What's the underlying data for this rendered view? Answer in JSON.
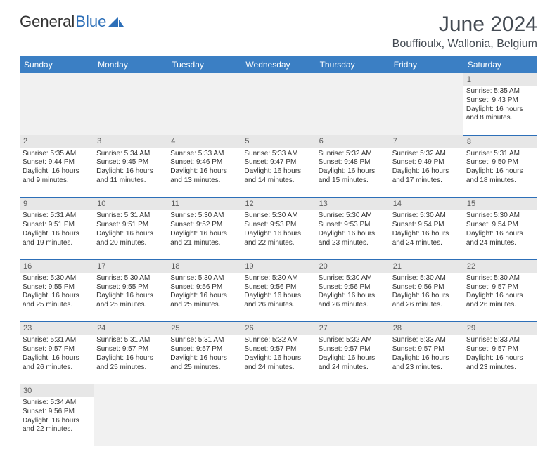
{
  "logo": {
    "part1": "General",
    "part2": "Blue"
  },
  "title": "June 2024",
  "location": "Bouffioulx, Wallonia, Belgium",
  "colors": {
    "header_bg": "#3b7fc4",
    "header_text": "#ffffff",
    "daynum_bg": "#e7e7e7",
    "border": "#2d6fb8",
    "logo_blue": "#2d6fb8"
  },
  "daysOfWeek": [
    "Sunday",
    "Monday",
    "Tuesday",
    "Wednesday",
    "Thursday",
    "Friday",
    "Saturday"
  ],
  "weeks": [
    [
      null,
      null,
      null,
      null,
      null,
      null,
      {
        "n": "1",
        "sunrise": "5:35 AM",
        "sunset": "9:43 PM",
        "daylight": "16 hours and 8 minutes."
      }
    ],
    [
      {
        "n": "2",
        "sunrise": "5:35 AM",
        "sunset": "9:44 PM",
        "daylight": "16 hours and 9 minutes."
      },
      {
        "n": "3",
        "sunrise": "5:34 AM",
        "sunset": "9:45 PM",
        "daylight": "16 hours and 11 minutes."
      },
      {
        "n": "4",
        "sunrise": "5:33 AM",
        "sunset": "9:46 PM",
        "daylight": "16 hours and 13 minutes."
      },
      {
        "n": "5",
        "sunrise": "5:33 AM",
        "sunset": "9:47 PM",
        "daylight": "16 hours and 14 minutes."
      },
      {
        "n": "6",
        "sunrise": "5:32 AM",
        "sunset": "9:48 PM",
        "daylight": "16 hours and 15 minutes."
      },
      {
        "n": "7",
        "sunrise": "5:32 AM",
        "sunset": "9:49 PM",
        "daylight": "16 hours and 17 minutes."
      },
      {
        "n": "8",
        "sunrise": "5:31 AM",
        "sunset": "9:50 PM",
        "daylight": "16 hours and 18 minutes."
      }
    ],
    [
      {
        "n": "9",
        "sunrise": "5:31 AM",
        "sunset": "9:51 PM",
        "daylight": "16 hours and 19 minutes."
      },
      {
        "n": "10",
        "sunrise": "5:31 AM",
        "sunset": "9:51 PM",
        "daylight": "16 hours and 20 minutes."
      },
      {
        "n": "11",
        "sunrise": "5:30 AM",
        "sunset": "9:52 PM",
        "daylight": "16 hours and 21 minutes."
      },
      {
        "n": "12",
        "sunrise": "5:30 AM",
        "sunset": "9:53 PM",
        "daylight": "16 hours and 22 minutes."
      },
      {
        "n": "13",
        "sunrise": "5:30 AM",
        "sunset": "9:53 PM",
        "daylight": "16 hours and 23 minutes."
      },
      {
        "n": "14",
        "sunrise": "5:30 AM",
        "sunset": "9:54 PM",
        "daylight": "16 hours and 24 minutes."
      },
      {
        "n": "15",
        "sunrise": "5:30 AM",
        "sunset": "9:54 PM",
        "daylight": "16 hours and 24 minutes."
      }
    ],
    [
      {
        "n": "16",
        "sunrise": "5:30 AM",
        "sunset": "9:55 PM",
        "daylight": "16 hours and 25 minutes."
      },
      {
        "n": "17",
        "sunrise": "5:30 AM",
        "sunset": "9:55 PM",
        "daylight": "16 hours and 25 minutes."
      },
      {
        "n": "18",
        "sunrise": "5:30 AM",
        "sunset": "9:56 PM",
        "daylight": "16 hours and 25 minutes."
      },
      {
        "n": "19",
        "sunrise": "5:30 AM",
        "sunset": "9:56 PM",
        "daylight": "16 hours and 26 minutes."
      },
      {
        "n": "20",
        "sunrise": "5:30 AM",
        "sunset": "9:56 PM",
        "daylight": "16 hours and 26 minutes."
      },
      {
        "n": "21",
        "sunrise": "5:30 AM",
        "sunset": "9:56 PM",
        "daylight": "16 hours and 26 minutes."
      },
      {
        "n": "22",
        "sunrise": "5:30 AM",
        "sunset": "9:57 PM",
        "daylight": "16 hours and 26 minutes."
      }
    ],
    [
      {
        "n": "23",
        "sunrise": "5:31 AM",
        "sunset": "9:57 PM",
        "daylight": "16 hours and 26 minutes."
      },
      {
        "n": "24",
        "sunrise": "5:31 AM",
        "sunset": "9:57 PM",
        "daylight": "16 hours and 25 minutes."
      },
      {
        "n": "25",
        "sunrise": "5:31 AM",
        "sunset": "9:57 PM",
        "daylight": "16 hours and 25 minutes."
      },
      {
        "n": "26",
        "sunrise": "5:32 AM",
        "sunset": "9:57 PM",
        "daylight": "16 hours and 24 minutes."
      },
      {
        "n": "27",
        "sunrise": "5:32 AM",
        "sunset": "9:57 PM",
        "daylight": "16 hours and 24 minutes."
      },
      {
        "n": "28",
        "sunrise": "5:33 AM",
        "sunset": "9:57 PM",
        "daylight": "16 hours and 23 minutes."
      },
      {
        "n": "29",
        "sunrise": "5:33 AM",
        "sunset": "9:57 PM",
        "daylight": "16 hours and 23 minutes."
      }
    ],
    [
      {
        "n": "30",
        "sunrise": "5:34 AM",
        "sunset": "9:56 PM",
        "daylight": "16 hours and 22 minutes."
      },
      null,
      null,
      null,
      null,
      null,
      null
    ]
  ],
  "labels": {
    "sunrise": "Sunrise:",
    "sunset": "Sunset:",
    "daylight": "Daylight:"
  }
}
